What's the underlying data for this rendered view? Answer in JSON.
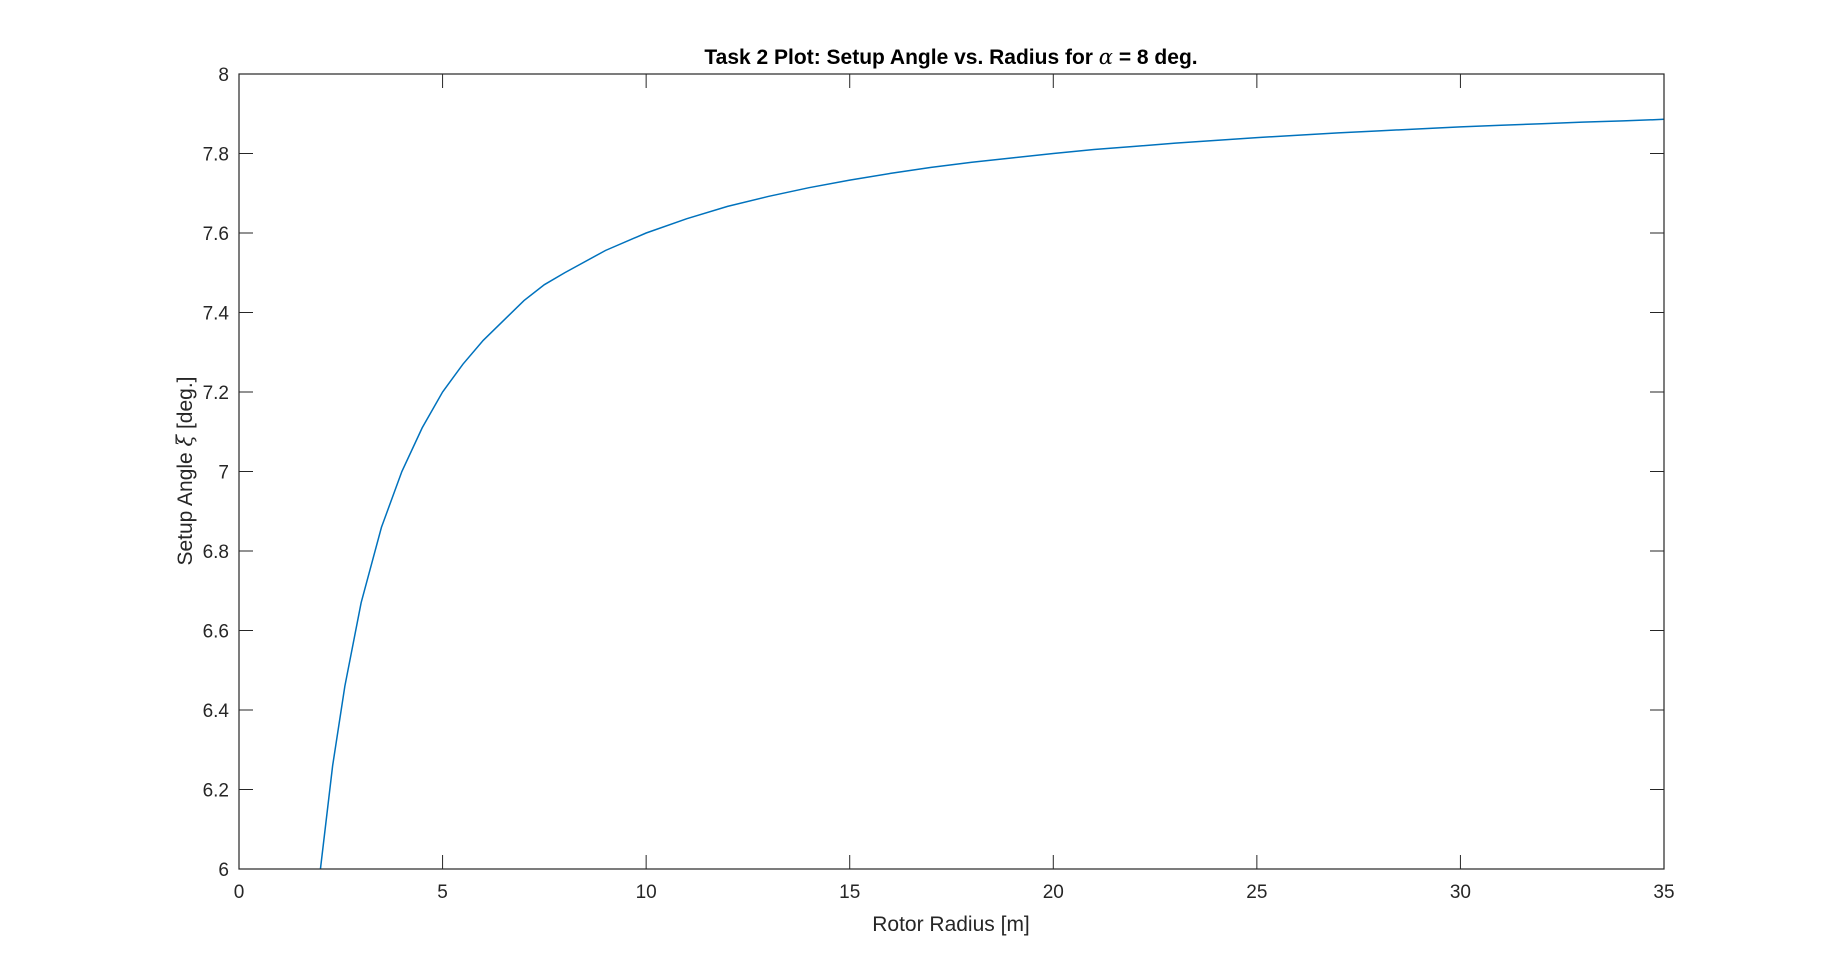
{
  "chart_data": {
    "type": "line",
    "title": {
      "prefix": "Task 2 Plot: Setup Angle vs. Radius for ",
      "symbol": "α",
      "suffix": " = 8 deg."
    },
    "xlabel": "Rotor Radius [m]",
    "ylabel": {
      "prefix": "Setup Angle ",
      "symbol": "ξ",
      "suffix": " [deg.]"
    },
    "xlim": [
      0,
      35
    ],
    "ylim": [
      6,
      8
    ],
    "xticks": [
      0,
      5,
      10,
      15,
      20,
      25,
      30,
      35
    ],
    "yticks": [
      6,
      6.2,
      6.4,
      6.6,
      6.8,
      7,
      7.2,
      7.4,
      7.6,
      7.8,
      8
    ],
    "grid": false,
    "line_color": "#0072BD",
    "axes_color": "#262626",
    "series": [
      {
        "x": [
          2.0,
          2.3,
          2.6,
          3.0,
          3.5,
          4.0,
          4.5,
          5.0,
          5.5,
          6.0,
          6.5,
          7.0,
          7.5,
          8.0,
          9.0,
          10.0,
          11.0,
          12.0,
          13.0,
          14.0,
          15.0,
          16.0,
          17.0,
          18.0,
          19.0,
          20.0,
          21.0,
          22.0,
          23.0,
          24.0,
          25.0,
          26.0,
          27.0,
          28.0,
          29.0,
          30.0,
          31.0,
          32.0,
          33.0,
          34.0,
          35.0
        ],
        "values": [
          6.0,
          6.26,
          6.46,
          6.67,
          6.86,
          7.0,
          7.11,
          7.2,
          7.27,
          7.33,
          7.38,
          7.43,
          7.47,
          7.5,
          7.556,
          7.6,
          7.636,
          7.667,
          7.692,
          7.714,
          7.733,
          7.75,
          7.765,
          7.778,
          7.789,
          7.8,
          7.81,
          7.818,
          7.826,
          7.833,
          7.84,
          7.846,
          7.852,
          7.857,
          7.862,
          7.867,
          7.871,
          7.875,
          7.879,
          7.882,
          7.886
        ]
      }
    ]
  }
}
